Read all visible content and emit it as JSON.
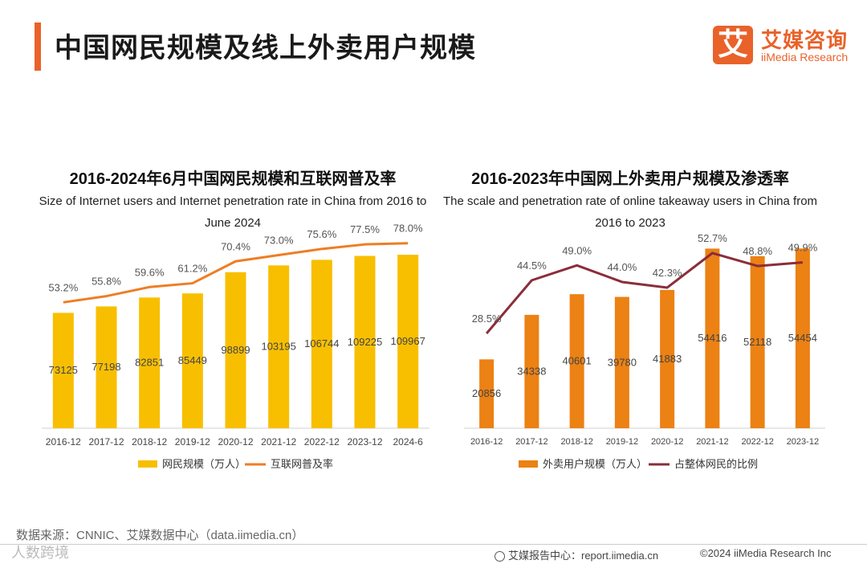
{
  "page": {
    "title": "中国网民规模及线上外卖用户规模",
    "source": "数据来源：CNNIC、艾媒数据中心（data.iimedia.cn）",
    "watermark": "人数跨境",
    "footer_report": "艾媒报告中心：report.iimedia.cn",
    "footer_copyright": "©2024  iiMedia Research  Inc",
    "accent_color": "#e9622a"
  },
  "logo": {
    "mark": "艾",
    "cn": "艾媒咨询",
    "en": "iiMedia Research",
    "icon": "globe-icon"
  },
  "chart_data": [
    {
      "type": "bar",
      "title": "2016-2024年6月中国网民规模和互联网普及率",
      "subtitle": "Size of Internet users and Internet penetration rate in China from 2016 to June 2024",
      "categories": [
        "2016-12",
        "2017-12",
        "2018-12",
        "2019-12",
        "2020-12",
        "2021-12",
        "2022-12",
        "2023-12",
        "2024-6"
      ],
      "series": [
        {
          "name": "网民规模（万人）",
          "kind": "bar",
          "color": "#f8bf00",
          "values": [
            73125,
            77198,
            82851,
            85449,
            98899,
            103195,
            106744,
            109225,
            109967
          ],
          "labels": [
            "73125",
            "77198",
            "82851",
            "85449",
            "98899",
            "103195",
            "106744",
            "109225",
            "109967"
          ]
        },
        {
          "name": "互联网普及率",
          "kind": "line",
          "color": "#ee7d24",
          "values": [
            53.2,
            55.8,
            59.6,
            61.2,
            70.4,
            73.0,
            75.6,
            77.5,
            78.0
          ],
          "labels": [
            "53.2%",
            "55.8%",
            "59.6%",
            "61.2%",
            "70.4%",
            "73.0%",
            "75.6%",
            "77.5%",
            "78.0%"
          ]
        }
      ],
      "legend_position": "bottom",
      "grid": false
    },
    {
      "type": "bar",
      "title": "2016-2023年中国网上外卖用户规模及渗透率",
      "subtitle": "The scale and penetration rate of online takeaway users in China from 2016 to 2023",
      "categories": [
        "2016-12",
        "2017-12",
        "2018-12",
        "2019-12",
        "2020-12",
        "2021-12",
        "2022-12",
        "2023-12"
      ],
      "series": [
        {
          "name": "外卖用户规模（万人）",
          "kind": "bar",
          "color": "#ec8114",
          "values": [
            20856,
            34338,
            40601,
            39780,
            41883,
            54416,
            52118,
            54454
          ],
          "labels": [
            "20856",
            "34338",
            "40601",
            "39780",
            "41883",
            "54416",
            "52118",
            "54454"
          ]
        },
        {
          "name": "占整体网民的比例",
          "kind": "line",
          "color": "#8b2d3a",
          "values": [
            28.5,
            44.5,
            49.0,
            44.0,
            42.3,
            52.7,
            48.8,
            49.9
          ],
          "labels": [
            "28.5%",
            "44.5%",
            "49.0%",
            "44.0%",
            "42.3%",
            "52.7%",
            "48.8%",
            "49.9%"
          ]
        }
      ],
      "legend_position": "bottom",
      "grid": false
    }
  ]
}
